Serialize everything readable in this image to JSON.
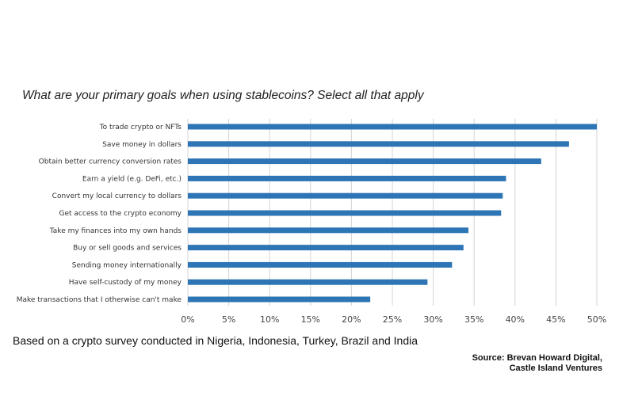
{
  "chart_data": {
    "type": "bar",
    "orientation": "horizontal",
    "title": "What are your primary goals when using stablecoins? Select all that apply",
    "categories": [
      "To trade crypto or NFTs",
      "Save money in dollars",
      "Obtain better currency conversion rates",
      "Earn a yield (e.g. DeFi, etc.)",
      "Convert my local currency to dollars",
      "Get access to the crypto economy",
      "Take my finances into my own hands",
      "Buy or sell goods and services",
      "Sending money internationally",
      "Have self-custody of my money",
      "Make transactions that I otherwise can't make"
    ],
    "values": [
      50,
      46.6,
      43.2,
      38.9,
      38.5,
      38.3,
      34.3,
      33.7,
      32.3,
      29.3,
      22.3
    ],
    "xlabel": "",
    "ylabel": "",
    "xlim": [
      0,
      50
    ],
    "xticks": [
      0,
      5,
      10,
      15,
      20,
      25,
      30,
      35,
      40,
      45,
      50
    ],
    "xtick_labels": [
      "0%",
      "5%",
      "10%",
      "15%",
      "20%",
      "25%",
      "30%",
      "35%",
      "40%",
      "45%",
      "50%"
    ],
    "grid": true,
    "bar_color": "#2e75b6"
  },
  "footnote": "Based on a crypto survey conducted in Nigeria, Indonesia, Turkey, Brazil and India",
  "source": {
    "line1": "Source: Brevan Howard Digital,",
    "line2": "Castle Island Ventures"
  }
}
